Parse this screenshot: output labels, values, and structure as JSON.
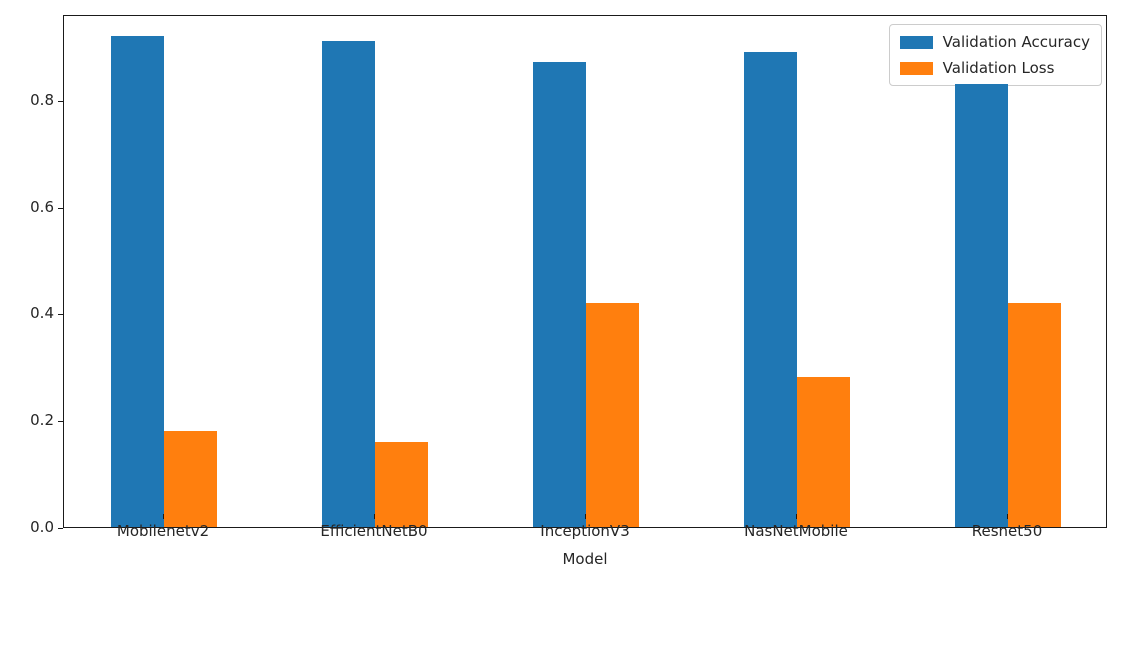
{
  "chart_data": {
    "type": "bar",
    "categories": [
      "Mobilenetv2",
      "EfficientNetB0",
      "InceptionV3",
      "NasNetMobile",
      "Resnet50"
    ],
    "series": [
      {
        "name": "Validation Accuracy",
        "color": "#1f77b4",
        "values": [
          0.92,
          0.91,
          0.87,
          0.89,
          0.83
        ]
      },
      {
        "name": "Validation Loss",
        "color": "#ff7f0e",
        "values": [
          0.18,
          0.16,
          0.42,
          0.28,
          0.42
        ]
      }
    ],
    "title": "",
    "xlabel": "Model",
    "ylabel": "",
    "ylim": [
      0,
      0.96
    ],
    "yticks": [
      0.0,
      0.2,
      0.4,
      0.6,
      0.8
    ],
    "ytick_labels": [
      "0.0",
      "0.2",
      "0.4",
      "0.6",
      "0.8"
    ],
    "grid": false,
    "legend_position": "upper right",
    "background_color": "#ffffff",
    "spine_color": "#1a1a1a"
  }
}
